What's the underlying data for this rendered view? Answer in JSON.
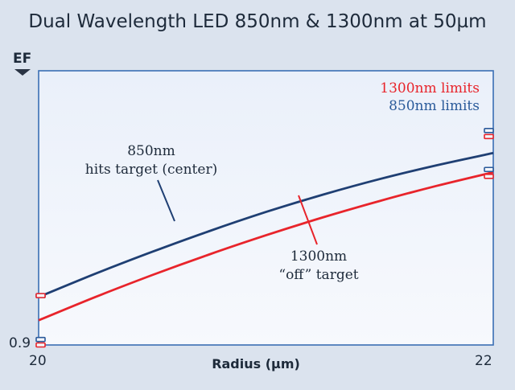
{
  "chart_data": {
    "type": "line",
    "title": "Dual Wavelength LED 850nm & 1300nm at 50µm",
    "ylabel": "EF",
    "xlabel": "Radius (µm)",
    "x_ticks": [
      "20",
      "22"
    ],
    "y_ticks": [
      "0.9"
    ],
    "xlim": [
      20,
      22
    ],
    "ylim": [
      0.9,
      1.0
    ],
    "grid": false,
    "series": [
      {
        "name": "850nm",
        "color": "#1f3f73",
        "x": [
          20.0,
          20.25,
          20.5,
          20.75,
          21.0,
          21.25,
          21.5,
          21.75,
          22.0
        ],
        "y": [
          0.9175,
          0.926,
          0.934,
          0.9415,
          0.9485,
          0.9548,
          0.9605,
          0.9655,
          0.97
        ]
      },
      {
        "name": "1300nm",
        "color": "#e8242b",
        "x": [
          20.0,
          20.25,
          20.5,
          20.75,
          21.0,
          21.25,
          21.5,
          21.75,
          22.0
        ],
        "y": [
          0.909,
          0.9175,
          0.9255,
          0.933,
          0.94,
          0.9465,
          0.9525,
          0.958,
          0.963
        ]
      }
    ],
    "limits": {
      "850nm": {
        "left": [
          0.918,
          0.902
        ],
        "right": [
          0.964,
          0.9782
        ]
      },
      "1300nm": {
        "left": [
          0.918,
          0.9
        ],
        "right": [
          0.9615,
          0.976
        ]
      }
    },
    "annotations": {
      "blue_line1": "850nm",
      "blue_line2": "hits target (center)",
      "red_line1": "1300nm",
      "red_line2": "“off” target"
    },
    "legend": {
      "red": "1300nm limits",
      "blue": "850nm limits",
      "placement": "top-right"
    }
  }
}
